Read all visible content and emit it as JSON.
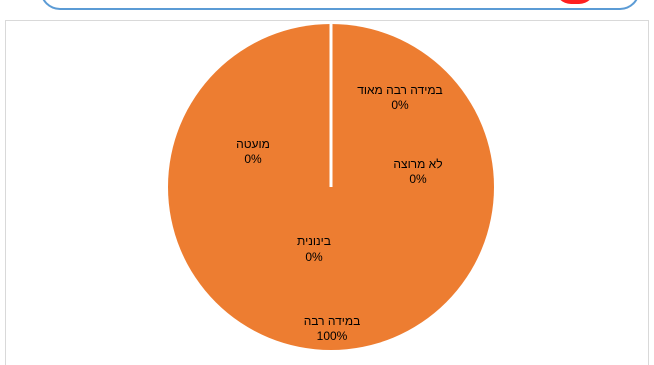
{
  "colors": {
    "slice": "#ed7d31",
    "separator": "#ffffff",
    "banner_border": "#5b9bd5",
    "banner_accent": "#ff1f1f"
  },
  "chart_data": {
    "type": "pie",
    "categories": [
      "במידה רבה מאוד",
      "לא מרוצה",
      "במידה רבה",
      "בינונית",
      "מועטה"
    ],
    "values": [
      0,
      0,
      100,
      0,
      0
    ],
    "data_labels": [
      "0%",
      "0%",
      "100%",
      "0%",
      "0%"
    ],
    "title": "",
    "legend": "none"
  }
}
